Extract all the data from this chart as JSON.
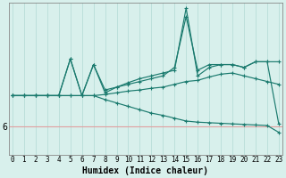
{
  "xlabel": "Humidex (Indice chaleur)",
  "background_color": "#d8f0ec",
  "line_color": "#1a7a6e",
  "grid_color": "#b8ddd8",
  "hline_color": "#e0a0a0",
  "x_ticks": [
    0,
    1,
    2,
    3,
    4,
    5,
    6,
    7,
    8,
    9,
    10,
    11,
    12,
    13,
    14,
    15,
    16,
    17,
    18,
    19,
    20,
    21,
    22,
    23
  ],
  "y_ticks": [
    6
  ],
  "ylim": [
    5.5,
    8.2
  ],
  "xlim": [
    -0.3,
    23.3
  ],
  "series": [
    [
      6.55,
      6.55,
      6.55,
      6.55,
      6.55,
      7.2,
      6.55,
      7.1,
      6.6,
      6.7,
      6.75,
      6.8,
      6.85,
      6.9,
      7.05,
      7.95,
      7.0,
      7.1,
      7.1,
      7.1,
      7.05,
      7.15,
      7.15,
      6.05
    ],
    [
      6.55,
      6.55,
      6.55,
      6.55,
      6.55,
      7.2,
      6.55,
      7.1,
      6.65,
      6.7,
      6.78,
      6.85,
      6.9,
      6.95,
      7.0,
      8.1,
      6.9,
      7.05,
      7.1,
      7.1,
      7.05,
      7.15,
      7.15,
      7.15
    ],
    [
      6.55,
      6.55,
      6.55,
      6.55,
      6.55,
      6.55,
      6.55,
      6.55,
      6.57,
      6.6,
      6.63,
      6.65,
      6.68,
      6.7,
      6.75,
      6.8,
      6.82,
      6.88,
      6.93,
      6.95,
      6.9,
      6.85,
      6.8,
      6.75
    ],
    [
      6.55,
      6.55,
      6.55,
      6.55,
      6.55,
      6.55,
      6.55,
      6.55,
      6.48,
      6.42,
      6.36,
      6.3,
      6.24,
      6.2,
      6.15,
      6.1,
      6.08,
      6.07,
      6.06,
      6.05,
      6.04,
      6.03,
      6.02,
      5.9
    ]
  ]
}
